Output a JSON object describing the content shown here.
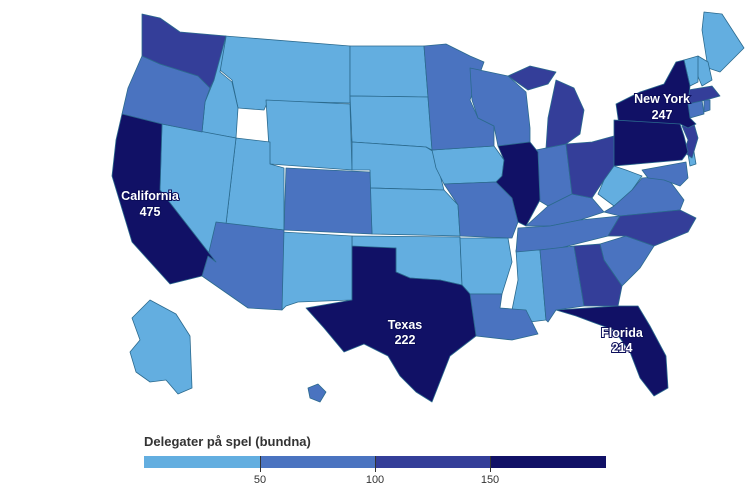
{
  "legend": {
    "title": "Delegater på spel (bundna)",
    "ticks": [
      "50",
      "100",
      "150"
    ],
    "colors": [
      "#63aee0",
      "#4a73c0",
      "#343e99",
      "#111166"
    ]
  },
  "labels": {
    "california": {
      "name": "California",
      "value": "475"
    },
    "texas": {
      "name": "Texas",
      "value": "222"
    },
    "new_york": {
      "name": "New York",
      "value": "247"
    },
    "florida": {
      "name": "Florida",
      "value": "214"
    }
  }
}
